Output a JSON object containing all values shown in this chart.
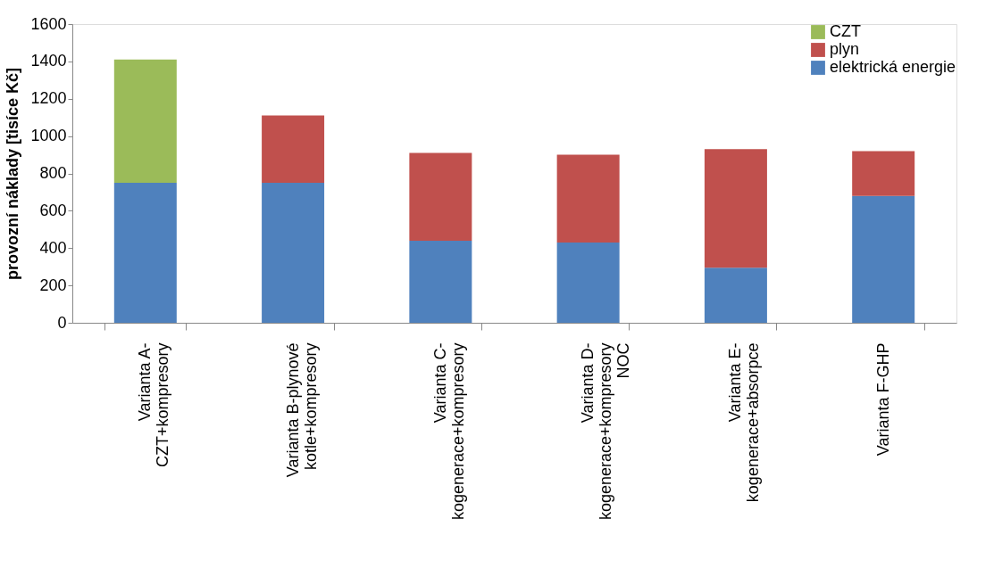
{
  "chart_data": {
    "type": "bar",
    "stacked": true,
    "ylabel": "provozní náklady [tisíce Kč]",
    "categories": [
      "Varianta A-\nCZT+kompresory",
      "Varianta B-plynové\nkotle+kompresory",
      "Varianta C-\nkogenerace+kompresory",
      "Varianta D-\nkogenerace+kompresory\nNOC",
      "Varianta E-\nkogenerace+absorpce",
      "Varianta F-GHP"
    ],
    "series": [
      {
        "name": "elektrická energie",
        "color": "#4f81bd",
        "values": [
          750,
          750,
          440,
          430,
          295,
          680
        ]
      },
      {
        "name": "plyn",
        "color": "#c0504d",
        "values": [
          0,
          360,
          470,
          470,
          635,
          240
        ]
      },
      {
        "name": "CZT",
        "color": "#9bbb59",
        "values": [
          660,
          0,
          0,
          0,
          0,
          0
        ]
      }
    ],
    "ylim": [
      0,
      1600
    ],
    "yticks": [
      0,
      200,
      400,
      600,
      800,
      1000,
      1200,
      1400,
      1600
    ],
    "grid": false,
    "legend": "top right"
  }
}
